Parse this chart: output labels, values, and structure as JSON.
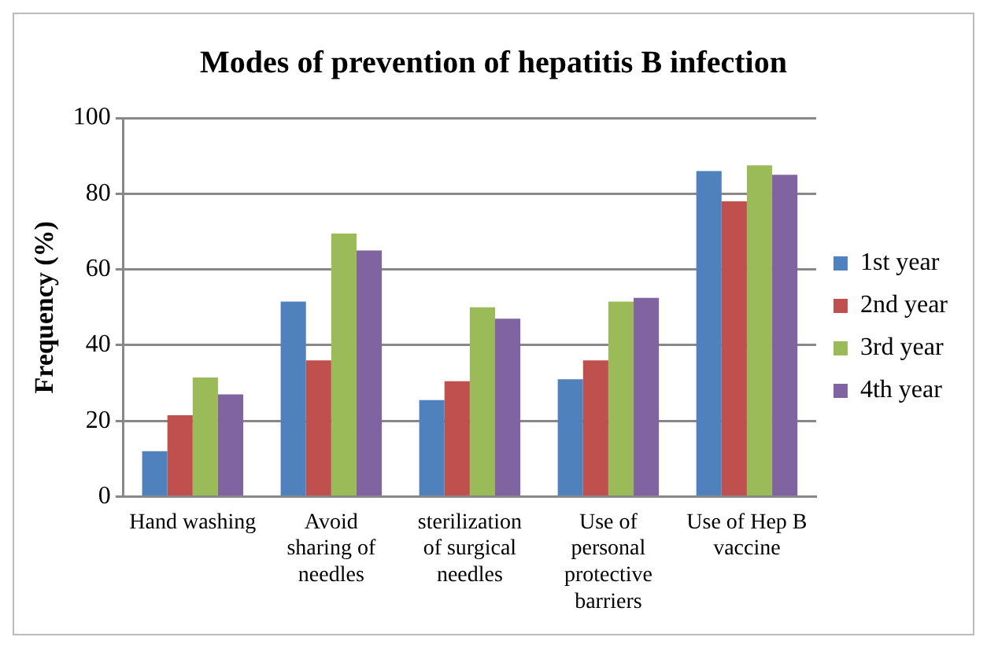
{
  "chart_data": {
    "type": "bar",
    "title": "Modes of prevention of hepatitis B infection",
    "ylabel": "Frequency (%)",
    "categories": [
      "Hand washing",
      "Avoid sharing of needles",
      "sterilization of surgical needles",
      "Use of personal protective barriers",
      "Use of Hep B vaccine"
    ],
    "series": [
      {
        "name": "1st year",
        "color": "#4f81bd",
        "values": [
          12,
          51.5,
          25.5,
          31,
          86
        ]
      },
      {
        "name": "2nd year",
        "color": "#c0504d",
        "values": [
          21.5,
          36,
          30.5,
          36,
          78
        ]
      },
      {
        "name": "3rd year",
        "color": "#9bbb59",
        "values": [
          31.5,
          69.5,
          50,
          51.5,
          87.5
        ]
      },
      {
        "name": "4th year",
        "color": "#8064a2",
        "values": [
          27,
          65,
          47,
          52.5,
          85
        ]
      }
    ],
    "ylim": [
      0,
      100
    ],
    "yticks": [
      0,
      20,
      40,
      60,
      80,
      100
    ],
    "grid": "y",
    "legend": "right"
  }
}
